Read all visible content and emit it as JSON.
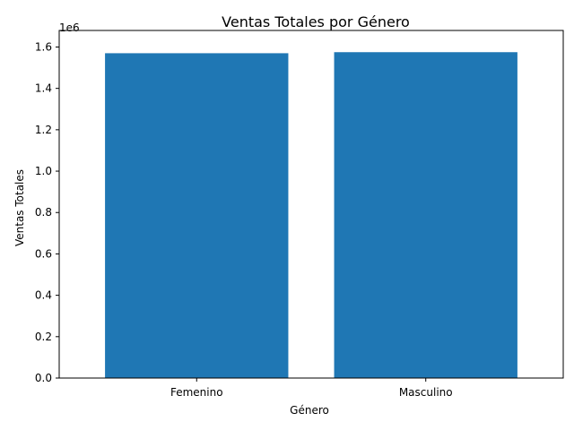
{
  "chart_data": {
    "type": "bar",
    "title": "Ventas Totales por Género",
    "xlabel": "Género",
    "ylabel": "Ventas Totales",
    "categories": [
      "Femenino",
      "Masculino"
    ],
    "values": [
      1570000,
      1575000
    ],
    "ylim": [
      0,
      1680000
    ],
    "y_ticks": [
      0,
      200000,
      400000,
      600000,
      800000,
      1000000,
      1200000,
      1400000,
      1600000
    ],
    "y_tick_labels": [
      "0.0",
      "0.2",
      "0.4",
      "0.6",
      "0.8",
      "1.0",
      "1.2",
      "1.4",
      "1.6"
    ],
    "y_offset_label": "1e6",
    "bar_color": "#1f77b4",
    "grid": false,
    "legend": false
  }
}
